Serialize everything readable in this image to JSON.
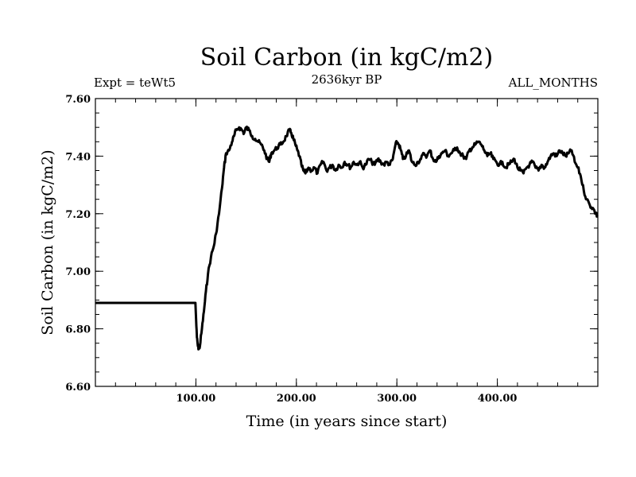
{
  "chart_data": {
    "type": "line",
    "title": "Soil Carbon (in kgC/m2)",
    "subtitle_left": "Expt = teWt5",
    "subtitle_center": "2636kyr BP",
    "subtitle_right": "ALL_MONTHS",
    "xlabel": "Time (in years since start)",
    "ylabel": "Soil Carbon (in kgC/m2)",
    "xlim": [
      0,
      500
    ],
    "ylim": [
      6.6,
      7.6
    ],
    "x_ticks": [
      100,
      200,
      300,
      400
    ],
    "x_tick_labels": [
      "100.00",
      "200.00",
      "300.00",
      "400.00"
    ],
    "y_ticks": [
      6.6,
      6.8,
      7.0,
      7.2,
      7.4,
      7.6
    ],
    "y_tick_labels": [
      "6.60",
      "6.80",
      "7.00",
      "7.20",
      "7.40",
      "7.60"
    ],
    "series": [
      {
        "name": "Soil Carbon",
        "x": [
          0,
          99.5,
          100,
          101,
          102,
          103,
          104,
          106,
          108,
          110,
          112,
          115,
          118,
          120,
          123,
          126,
          128,
          130,
          133,
          136,
          138,
          140,
          143,
          146,
          148,
          150,
          153,
          156,
          159,
          162,
          165,
          168,
          171,
          173,
          175,
          178,
          181,
          184,
          187,
          190,
          193,
          195,
          197,
          199,
          201,
          203,
          205,
          207,
          209,
          212,
          215,
          218,
          221,
          224,
          227,
          230,
          233,
          236,
          239,
          242,
          245,
          248,
          251,
          254,
          257,
          260,
          263,
          266,
          269,
          272,
          275,
          278,
          281,
          284,
          287,
          290,
          293,
          296,
          298,
          300,
          302,
          304,
          306,
          309,
          312,
          315,
          318,
          321,
          324,
          327,
          330,
          333,
          336,
          339,
          342,
          345,
          348,
          351,
          354,
          357,
          360,
          363,
          366,
          369,
          372,
          375,
          378,
          381,
          384,
          387,
          390,
          393,
          396,
          399,
          402,
          405,
          408,
          411,
          414,
          417,
          420,
          423,
          426,
          429,
          432,
          435,
          438,
          441,
          444,
          447,
          450,
          453,
          456,
          459,
          462,
          465,
          468,
          471,
          474,
          477,
          480,
          483,
          486,
          489,
          492,
          495,
          498,
          500
        ],
        "y": [
          6.89,
          6.89,
          6.85,
          6.77,
          6.74,
          6.73,
          6.74,
          6.8,
          6.86,
          6.93,
          6.99,
          7.05,
          7.09,
          7.13,
          7.2,
          7.29,
          7.36,
          7.41,
          7.42,
          7.45,
          7.47,
          7.49,
          7.5,
          7.49,
          7.48,
          7.5,
          7.49,
          7.47,
          7.46,
          7.45,
          7.44,
          7.42,
          7.39,
          7.38,
          7.41,
          7.42,
          7.43,
          7.44,
          7.45,
          7.47,
          7.49,
          7.48,
          7.46,
          7.44,
          7.42,
          7.4,
          7.37,
          7.35,
          7.34,
          7.36,
          7.35,
          7.36,
          7.34,
          7.37,
          7.38,
          7.35,
          7.36,
          7.37,
          7.35,
          7.37,
          7.36,
          7.38,
          7.37,
          7.36,
          7.38,
          7.37,
          7.38,
          7.36,
          7.37,
          7.39,
          7.38,
          7.37,
          7.39,
          7.38,
          7.37,
          7.38,
          7.37,
          7.39,
          7.43,
          7.45,
          7.44,
          7.42,
          7.39,
          7.4,
          7.42,
          7.38,
          7.37,
          7.38,
          7.39,
          7.41,
          7.4,
          7.42,
          7.39,
          7.38,
          7.4,
          7.41,
          7.42,
          7.4,
          7.41,
          7.42,
          7.43,
          7.41,
          7.4,
          7.39,
          7.42,
          7.43,
          7.44,
          7.45,
          7.44,
          7.42,
          7.4,
          7.41,
          7.39,
          7.38,
          7.37,
          7.38,
          7.36,
          7.37,
          7.38,
          7.39,
          7.36,
          7.35,
          7.34,
          7.36,
          7.37,
          7.38,
          7.36,
          7.35,
          7.37,
          7.36,
          7.38,
          7.4,
          7.41,
          7.4,
          7.42,
          7.41,
          7.4,
          7.41,
          7.42,
          7.38,
          7.36,
          7.33,
          7.28,
          7.25,
          7.23,
          7.22,
          7.2,
          7.19
        ]
      }
    ]
  }
}
